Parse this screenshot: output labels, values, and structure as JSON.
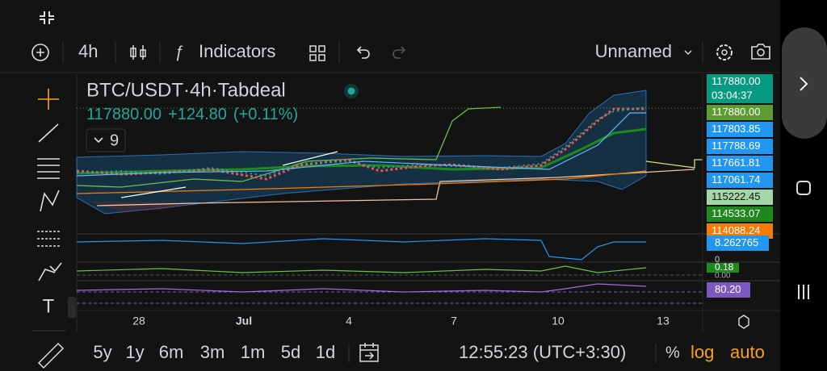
{
  "toolbar": {
    "interval": "4h",
    "indicators": "Indicators",
    "layout": "Unnamed"
  },
  "legend": {
    "symbol": "BTC/USDT·4h·Tabdeal",
    "price": "117880.00",
    "change": "+124.80",
    "change_pct": "(+0.11%)",
    "indicator_count": "9"
  },
  "price_scale": [
    {
      "text": "117880.00",
      "time": "03:04:37",
      "color": "#089981"
    },
    {
      "text": "117880.00",
      "color": "#5d9b33"
    },
    {
      "text": "117803.85",
      "color": "#2196f3"
    },
    {
      "text": "117788.69",
      "color": "#2196f3"
    },
    {
      "text": "117661.81",
      "color": "#2196f3"
    },
    {
      "text": "117061.74",
      "color": "#2196f3"
    },
    {
      "text": "115222.45",
      "color": "#a5d6a7"
    },
    {
      "text": "114533.07",
      "color": "#1e8a1e"
    },
    {
      "text": "114088.24",
      "color": "#f57c00"
    }
  ],
  "indicator_scale": {
    "volume": "8.262765",
    "zero": "0",
    "osc": "0.18",
    "osc_zero": "0.00",
    "rsi": "80.20"
  },
  "time_axis": [
    "28",
    "Jul",
    "4",
    "7",
    "10",
    "13"
  ],
  "bottom_bar": {
    "ranges": [
      "5y",
      "1y",
      "6m",
      "3m",
      "1m",
      "5d",
      "1d"
    ],
    "clock": "12:55:23 (UTC+3:30)",
    "percent": "%",
    "log": "log",
    "auto": "auto"
  }
}
